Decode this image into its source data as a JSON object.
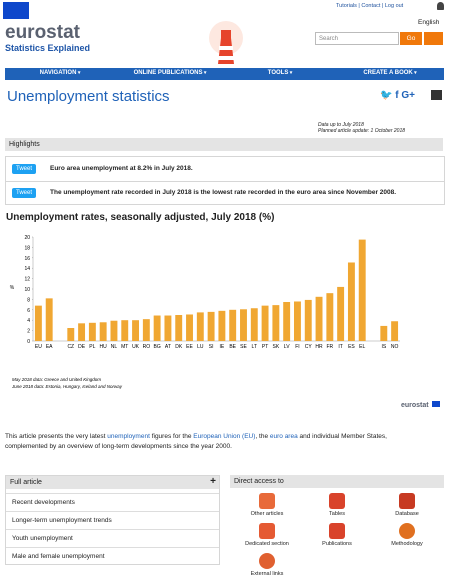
{
  "header": {
    "links": [
      "Tutorials",
      "Contact",
      "Log out"
    ],
    "language": "English",
    "logo": "eurostat",
    "tagline": "Statistics Explained",
    "search_placeholder": "Search",
    "search_button": "Go"
  },
  "nav": [
    "NAVIGATION",
    "ONLINE PUBLICATIONS",
    "TOOLS",
    "CREATE A BOOK"
  ],
  "title": "Unemployment statistics",
  "meta": [
    "Data up to July 2018",
    "Planned article update: 1 October 2018"
  ],
  "highlights": {
    "title": "Highlights",
    "items": [
      {
        "button": "Tweet",
        "text": "Euro area unemployment at 8.2% in July 2018."
      },
      {
        "button": "Tweet",
        "text": "The unemployment rate recorded in July 2018 is the lowest rate recorded in the euro area since November 2008."
      }
    ]
  },
  "chart_data": {
    "type": "bar",
    "title": "Unemployment rates, seasonally adjusted, July 2018 (%)",
    "y_label": "%",
    "color": "#f0a732",
    "categories": [
      "EU",
      "EA",
      null,
      "CZ",
      "DE",
      "PL",
      "HU",
      "NL",
      "MT",
      "UK",
      "RO",
      "BG",
      "AT",
      "DK",
      "EE",
      "LU",
      "SI",
      "IE",
      "BE",
      "SE",
      "LT",
      "PT",
      "SK",
      "LV",
      "FI",
      "CY",
      "HR",
      "FR",
      "IT",
      "ES",
      "EL",
      null,
      "IS",
      "NO"
    ],
    "values": [
      6.8,
      8.2,
      null,
      2.5,
      3.4,
      3.5,
      3.6,
      3.9,
      4.0,
      4.0,
      4.2,
      4.9,
      4.9,
      5.0,
      5.1,
      5.5,
      5.6,
      5.8,
      6.0,
      6.1,
      6.3,
      6.8,
      6.9,
      7.5,
      7.6,
      7.9,
      8.5,
      9.2,
      10.4,
      15.1,
      19.5,
      null,
      2.9,
      3.8
    ],
    "ylim": [
      0,
      20
    ],
    "yticks": [
      0,
      2,
      4,
      6,
      8,
      10,
      12,
      14,
      16,
      18,
      20
    ],
    "notes": [
      "May 2018 data: Greece and United Kingdom",
      "June 2018 data: Estonia, Hungary, Iceland and Norway"
    ],
    "source": "eurostat"
  },
  "intro": [
    "This article presents the very latest ",
    "unemployment",
    " figures for the ",
    "European Union (EU)",
    ", the ",
    "euro area",
    " and individual Member States, complemented by an overview of long-term developments since the year 2000."
  ],
  "full_article": {
    "title": "Full article",
    "items": [
      "Recent developments",
      "Longer-term unemployment trends",
      "Youth unemployment",
      "Male and female unemployment"
    ]
  },
  "direct_access": {
    "title": "Direct access to",
    "items": [
      "Other articles",
      "Tables",
      "Database",
      "Dedicated section",
      "Publications",
      "Methodology",
      "External links"
    ]
  }
}
